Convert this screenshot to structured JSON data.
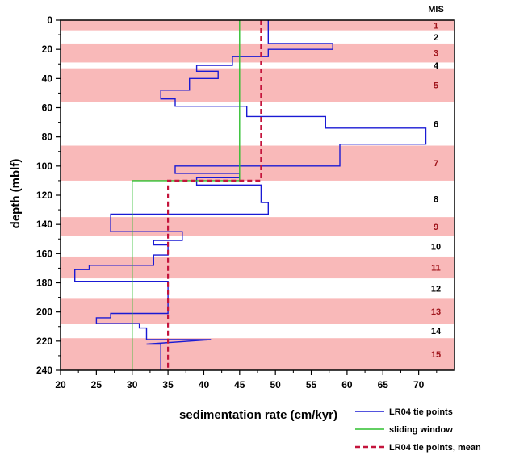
{
  "chart_data": {
    "type": "line",
    "xlabel": "sedimentation rate (cm/kyr)",
    "ylabel": "depth (mblf)",
    "xlim": [
      20,
      75
    ],
    "ylim": [
      0,
      240
    ],
    "y_inverted": true,
    "x_ticks": [
      20,
      25,
      30,
      35,
      40,
      45,
      50,
      55,
      60,
      65,
      70
    ],
    "y_ticks": [
      0,
      20,
      40,
      60,
      80,
      100,
      120,
      140,
      160,
      180,
      200,
      220,
      240
    ],
    "mis_header": "MIS",
    "mis_stages": [
      {
        "label": "1",
        "top": 0,
        "bottom": 7,
        "odd": true
      },
      {
        "label": "2",
        "top": 7,
        "bottom": 16,
        "odd": false
      },
      {
        "label": "3",
        "top": 16,
        "bottom": 29,
        "odd": true
      },
      {
        "label": "4",
        "top": 29,
        "bottom": 33,
        "odd": false
      },
      {
        "label": "5",
        "top": 33,
        "bottom": 56,
        "odd": true
      },
      {
        "label": "6",
        "top": 56,
        "bottom": 86,
        "odd": false
      },
      {
        "label": "7",
        "top": 86,
        "bottom": 110,
        "odd": true
      },
      {
        "label": "8",
        "top": 110,
        "bottom": 135,
        "odd": false
      },
      {
        "label": "9",
        "top": 135,
        "bottom": 148,
        "odd": true
      },
      {
        "label": "10",
        "top": 148,
        "bottom": 162,
        "odd": false
      },
      {
        "label": "11",
        "top": 162,
        "bottom": 177,
        "odd": true
      },
      {
        "label": "12",
        "top": 177,
        "bottom": 191,
        "odd": false
      },
      {
        "label": "13",
        "top": 191,
        "bottom": 208,
        "odd": true
      },
      {
        "label": "14",
        "top": 208,
        "bottom": 218,
        "odd": false
      },
      {
        "label": "15",
        "top": 218,
        "bottom": 240,
        "odd": true
      }
    ],
    "series": [
      {
        "name": "LR04 tie points",
        "color": "#1a1ad4",
        "style": "solid",
        "points": [
          [
            49,
            0
          ],
          [
            49,
            16
          ],
          [
            58,
            16
          ],
          [
            58,
            20
          ],
          [
            49,
            20
          ],
          [
            49,
            25
          ],
          [
            44,
            25
          ],
          [
            44,
            31
          ],
          [
            39,
            31
          ],
          [
            39,
            35
          ],
          [
            42,
            35
          ],
          [
            42,
            40
          ],
          [
            38,
            40
          ],
          [
            38,
            48
          ],
          [
            34,
            48
          ],
          [
            34,
            54
          ],
          [
            36,
            54
          ],
          [
            36,
            59
          ],
          [
            46,
            59
          ],
          [
            46,
            66
          ],
          [
            57,
            66
          ],
          [
            57,
            74
          ],
          [
            71,
            74
          ],
          [
            71,
            85
          ],
          [
            59,
            85
          ],
          [
            59,
            100
          ],
          [
            36,
            100
          ],
          [
            36,
            105
          ],
          [
            45,
            105
          ],
          [
            45,
            108
          ],
          [
            39,
            108
          ],
          [
            39,
            113
          ],
          [
            48,
            113
          ],
          [
            48,
            125
          ],
          [
            49,
            125
          ],
          [
            49,
            133
          ],
          [
            27,
            133
          ],
          [
            27,
            145
          ],
          [
            37,
            145
          ],
          [
            37,
            151
          ],
          [
            33,
            151
          ],
          [
            33,
            154
          ],
          [
            35,
            154
          ],
          [
            35,
            161
          ],
          [
            33,
            161
          ],
          [
            33,
            168
          ],
          [
            24,
            168
          ],
          [
            24,
            171
          ],
          [
            22,
            171
          ],
          [
            22,
            179
          ],
          [
            35,
            179
          ],
          [
            35,
            201
          ],
          [
            27,
            201
          ],
          [
            27,
            204
          ],
          [
            25,
            204
          ],
          [
            25,
            208
          ],
          [
            31,
            208
          ],
          [
            31,
            211
          ],
          [
            32,
            211
          ],
          [
            32,
            219
          ],
          [
            41,
            219
          ],
          [
            32,
            222
          ],
          [
            34,
            222
          ],
          [
            34,
            240
          ]
        ]
      },
      {
        "name": "sliding window",
        "color": "#2fbf2f",
        "style": "solid",
        "points": [
          [
            45,
            0
          ],
          [
            45,
            110
          ],
          [
            30,
            110
          ],
          [
            30,
            240
          ]
        ]
      },
      {
        "name": "LR04 tie points, mean",
        "color": "#c4143c",
        "style": "dashed",
        "points": [
          [
            48,
            0
          ],
          [
            48,
            110
          ],
          [
            35,
            110
          ],
          [
            35,
            240
          ]
        ]
      }
    ],
    "legend": {
      "position": "bottom-right",
      "entries": [
        "LR04 tie points",
        "sliding window",
        "LR04 tie points, mean"
      ]
    },
    "colors": {
      "odd_band": "#f9b9b9",
      "even_band": "#ffffff",
      "odd_label": "#a0151c",
      "even_label": "#000000"
    }
  }
}
